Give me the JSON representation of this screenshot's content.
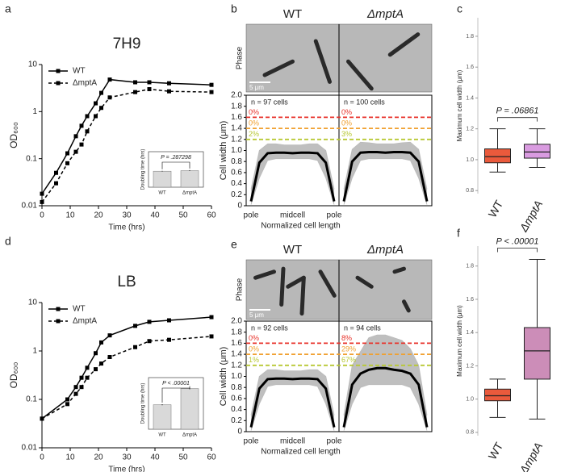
{
  "chart_data": [
    {
      "type": "line",
      "panel": "a",
      "title": "7H9",
      "xlabel": "Time (hrs)",
      "ylabel": "OD₆₀₀",
      "log_scale": true,
      "xlim": [
        0,
        60
      ],
      "ylim": [
        0.01,
        10
      ],
      "xticks": [
        0,
        10,
        20,
        30,
        40,
        50,
        60
      ],
      "yticks": [
        0.01,
        0.1,
        1,
        10
      ],
      "legend": "upper left",
      "x": [
        0,
        5,
        9,
        12,
        14,
        16,
        19,
        21,
        24,
        33,
        38,
        45,
        60
      ],
      "series": [
        {
          "name": "WT",
          "color": "#000000",
          "line_style": "solid",
          "values": [
            0.018,
            0.05,
            0.13,
            0.3,
            0.5,
            0.8,
            1.5,
            2.5,
            4.8,
            4.2,
            4.2,
            4.0,
            3.7
          ]
        },
        {
          "name": "ΔmptA",
          "color": "#000000",
          "line_style": "dashed",
          "values": [
            0.012,
            0.03,
            0.08,
            0.14,
            0.2,
            0.38,
            0.8,
            1.2,
            2.0,
            2.6,
            3.0,
            2.7,
            2.6
          ]
        }
      ],
      "inset": {
        "type": "bar",
        "ylabel": "Doubling time (hrs)",
        "categories": [
          "WT",
          "ΔmptA"
        ],
        "values": [
          2.7,
          2.8
        ],
        "errors": [
          0.06,
          0.08
        ],
        "ylim": [
          0,
          6
        ],
        "color": "#d9d9d9",
        "annotation": "P = .287298"
      }
    },
    {
      "type": "profile",
      "panel": "b",
      "ylabel": "Cell width (μm)",
      "xlabel": "Normalized cell length",
      "image_label": "Phase",
      "categories": [
        "pole",
        "midcell",
        "pole"
      ],
      "ylim": [
        0,
        2
      ],
      "yticks": [
        0,
        0.2,
        0.4,
        0.6,
        0.8,
        {
          "value": 1,
          "label": "1.0"
        },
        1.2,
        1.4,
        1.6,
        1.8,
        {
          "value": 2,
          "label": "2.0"
        }
      ],
      "thresholds": [
        1.6,
        1.4,
        1.2
      ],
      "threshold_colors": [
        "#e8322a",
        "#f0a030",
        "#b8c834"
      ],
      "x": [
        0,
        0.1,
        0.2,
        0.3,
        0.4,
        0.5,
        0.6,
        0.7,
        0.8,
        0.9,
        1
      ],
      "conditions": [
        {
          "name": "WT",
          "scale_label": "5 μm",
          "n_label": "n = 97 cells",
          "shares": [
            0,
            0,
            2
          ],
          "share_labels": [
            "0%",
            "0%",
            "2%"
          ],
          "mean": [
            0.08,
            0.78,
            0.95,
            0.96,
            0.96,
            0.95,
            0.96,
            0.96,
            0.95,
            0.78,
            0.08
          ],
          "upper": [
            0.3,
            1.0,
            1.12,
            1.12,
            1.1,
            1.1,
            1.1,
            1.12,
            1.12,
            1.0,
            0.3
          ],
          "lower": [
            0.02,
            0.5,
            0.82,
            0.85,
            0.85,
            0.85,
            0.85,
            0.85,
            0.82,
            0.5,
            0.02
          ]
        },
        {
          "name": "ΔmptA",
          "n_label": "n = 100 cells",
          "shares": [
            0,
            0,
            3
          ],
          "share_labels": [
            "0%",
            "0%",
            "3%"
          ],
          "mean": [
            0.08,
            0.8,
            0.96,
            0.97,
            0.97,
            0.96,
            0.97,
            0.97,
            0.96,
            0.8,
            0.08
          ],
          "upper": [
            0.3,
            1.02,
            1.15,
            1.14,
            1.12,
            1.12,
            1.12,
            1.14,
            1.15,
            1.02,
            0.3
          ],
          "lower": [
            0.02,
            0.5,
            0.82,
            0.85,
            0.85,
            0.85,
            0.85,
            0.85,
            0.82,
            0.5,
            0.02
          ]
        }
      ]
    },
    {
      "type": "box",
      "panel": "c",
      "ylabel": "Maximum cell width (μm)",
      "ylim": [
        0.78,
        1.92
      ],
      "yticks": [
        0.8,
        {
          "value": 1,
          "label": "1.0"
        },
        1.2,
        1.4,
        1.6,
        1.8
      ],
      "categories": [
        "WT",
        "ΔmptA"
      ],
      "colors": [
        "#ea5a3c",
        "#d99be0"
      ],
      "stats": [
        [
          0.92,
          0.98,
          1.02,
          1.07,
          1.2
        ],
        [
          0.95,
          1.01,
          1.05,
          1.1,
          1.2
        ]
      ],
      "annotation": "P = .06861"
    },
    {
      "type": "line",
      "panel": "d",
      "title": "LB",
      "xlabel": "Time (hrs)",
      "ylabel": "OD₆₀₀",
      "log_scale": true,
      "xlim": [
        0,
        60
      ],
      "ylim": [
        0.01,
        10
      ],
      "xticks": [
        0,
        10,
        20,
        30,
        40,
        50,
        60
      ],
      "yticks": [
        0.01,
        0.1,
        1,
        10
      ],
      "legend": "upper left",
      "x": [
        0,
        9,
        12,
        14,
        16,
        19,
        21,
        24,
        33,
        38,
        45,
        60
      ],
      "series": [
        {
          "name": "WT",
          "color": "#000000",
          "line_style": "solid",
          "values": [
            0.04,
            0.1,
            0.18,
            0.28,
            0.45,
            0.9,
            1.5,
            2.1,
            3.3,
            4.0,
            4.3,
            5.0
          ]
        },
        {
          "name": "ΔmptA",
          "color": "#000000",
          "line_style": "dashed",
          "values": [
            0.04,
            0.08,
            0.13,
            0.18,
            0.28,
            0.42,
            0.55,
            0.75,
            1.2,
            1.6,
            1.7,
            2.0
          ]
        }
      ],
      "inset": {
        "type": "bar",
        "ylabel": "Doubling time (hrs)",
        "categories": [
          "WT",
          "ΔmptA"
        ],
        "values": [
          3.8,
          6.3
        ],
        "errors": [
          0.08,
          0.12
        ],
        "ylim": [
          0,
          8
        ],
        "color": "#d9d9d9",
        "annotation": "P < .00001"
      }
    },
    {
      "type": "profile",
      "panel": "e",
      "ylabel": "Cell width (μm)",
      "xlabel": "Normalized cell length",
      "image_label": "Phase",
      "categories": [
        "pole",
        "midcell",
        "pole"
      ],
      "ylim": [
        0,
        2
      ],
      "yticks": [
        0,
        0.2,
        0.4,
        0.6,
        0.8,
        {
          "value": 1,
          "label": "1.0"
        },
        1.2,
        1.4,
        1.6,
        1.8,
        {
          "value": 2,
          "label": "2.0"
        }
      ],
      "thresholds": [
        1.6,
        1.4,
        1.2
      ],
      "threshold_colors": [
        "#e8322a",
        "#f0a030",
        "#b8c834"
      ],
      "x": [
        0,
        0.1,
        0.2,
        0.3,
        0.4,
        0.5,
        0.6,
        0.7,
        0.8,
        0.9,
        1
      ],
      "conditions": [
        {
          "name": "WT",
          "scale_label": "5 μm",
          "n_label": "n = 92 cells",
          "shares": [
            0,
            0,
            1
          ],
          "share_labels": [
            "0%",
            "0%",
            "1%"
          ],
          "mean": [
            0.08,
            0.78,
            0.95,
            0.96,
            0.96,
            0.95,
            0.96,
            0.96,
            0.95,
            0.78,
            0.08
          ],
          "upper": [
            0.3,
            1.0,
            1.12,
            1.12,
            1.1,
            1.1,
            1.1,
            1.12,
            1.12,
            1.0,
            0.3
          ],
          "lower": [
            0.02,
            0.5,
            0.82,
            0.85,
            0.85,
            0.85,
            0.85,
            0.85,
            0.82,
            0.5,
            0.02
          ]
        },
        {
          "name": "ΔmptA",
          "n_label": "n = 94 cells",
          "shares": [
            8,
            29,
            67
          ],
          "share_labels": [
            "8%",
            "29%",
            "67%"
          ],
          "mean": [
            0.08,
            0.85,
            1.05,
            1.12,
            1.15,
            1.15,
            1.12,
            1.1,
            1.05,
            0.85,
            0.08
          ],
          "upper": [
            0.3,
            1.2,
            1.45,
            1.7,
            1.75,
            1.75,
            1.7,
            1.65,
            1.5,
            1.2,
            0.3
          ],
          "lower": [
            0.02,
            0.5,
            0.8,
            0.85,
            0.85,
            0.85,
            0.85,
            0.85,
            0.8,
            0.5,
            0.02
          ]
        }
      ]
    },
    {
      "type": "box",
      "panel": "f",
      "ylabel": "Maximum cell width (μm)",
      "ylim": [
        0.78,
        1.92
      ],
      "yticks": [
        0.8,
        {
          "value": 1,
          "label": "1.0"
        },
        1.2,
        1.4,
        1.6,
        1.8
      ],
      "categories": [
        "WT",
        "ΔmptA"
      ],
      "colors": [
        "#ea5a3c",
        "#cc8db8"
      ],
      "stats": [
        [
          0.89,
          0.99,
          1.02,
          1.06,
          1.12
        ],
        [
          0.88,
          1.12,
          1.29,
          1.43,
          1.84
        ]
      ],
      "annotation": "P < .00001"
    }
  ]
}
